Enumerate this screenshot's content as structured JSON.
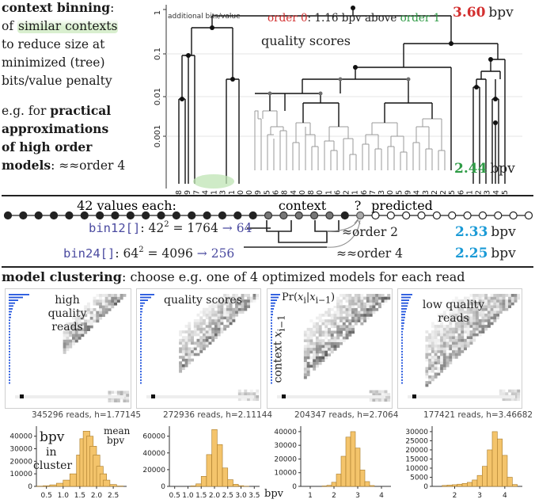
{
  "colors": {
    "red": "#d32f2f",
    "green": "#2e9b45",
    "blue": "#1a9ad6",
    "purple": "#4b4ba0",
    "orange": "#f4c46b",
    "orange_edge": "#a77a2a"
  },
  "left_text": {
    "line1_bold": "context binning",
    "line1_rest": ":",
    "line2_pre": "of ",
    "line2_hl": "similar contexts",
    "line3": "to reduce size at",
    "line4": "minimized (tree)",
    "line5": "bits/value penalty",
    "line6": "e.g. for ",
    "line6_bold": "practical",
    "line7_bold": "approximations",
    "line8_bold": "of high order",
    "line9_bold": "models",
    "line9_rest": ": ≈≈order 4"
  },
  "tree": {
    "y_tick_labels": [
      "1",
      "0.1",
      "0.01",
      "0.001"
    ],
    "axis_caption": "additional bits/value",
    "order_note_a": "order 0",
    "order_note_b": ": 1.16 bpv above ",
    "order_note_c": "order 1",
    "bpv_top_value": "3.60",
    "bpv_bottom_value": "2.44",
    "bpv_unit": "bpv",
    "title": "quality scores",
    "leaf_labels": [
      "38",
      "39",
      "37",
      "4",
      "41",
      "3",
      "1",
      "0",
      "40",
      "19",
      "25",
      "26",
      "28",
      "24",
      "30",
      "18",
      "20",
      "21",
      "6",
      "12",
      "11",
      "16",
      "17",
      "23",
      "10",
      "15",
      "9",
      "14",
      "13",
      "22",
      "2",
      "35",
      "36",
      "31",
      "32",
      "33",
      "34",
      "5"
    ]
  },
  "context_row": {
    "values_label": "42 values each:",
    "context_label": "context",
    "question": "?",
    "predicted_label": "predicted",
    "bin12_name": "bin12[]",
    "bin12_formula": ": 42",
    "bin12_exp": "2",
    "bin12_eq": " = 1764 ",
    "bin12_arrow": "→ 64",
    "bin24_name": "bin24[]",
    "bin24_formula": ": 64",
    "bin24_exp": "2",
    "bin24_eq": " = 4096 ",
    "bin24_arrow": "→ 256",
    "order2_label": "≈order 2",
    "order2_value": "2.33",
    "order4_label": "≈≈order 4",
    "order4_value": "2.25",
    "unit": "bpv"
  },
  "clustering": {
    "heading_bold": "model clustering",
    "heading_rest": ": choose e.g. one of 4 optimized models for each read",
    "panel1_label": "high quality reads",
    "panel2_label": "quality scores",
    "panel3_label": "Pr(x_i|x_{i-1})",
    "panel3_side": "context x_{i-1}",
    "panel4_label": "low quality reads",
    "stats": [
      "345296 reads, h=1.77145",
      "272936 reads, h=2.11144",
      "204347 reads, h=2.7064",
      "177421 reads, h=3.46682"
    ],
    "hist_note_bpv": "bpv",
    "hist_note_in": "in",
    "hist_note_cluster": "cluster",
    "hist_note_mean": "mean",
    "hist_note_mean_bpv": "bpv",
    "x_axis_unit": "bpv"
  },
  "chart_data": [
    {
      "type": "bar",
      "title": "345296 reads, h=1.77145",
      "x": [
        0.3,
        0.5,
        0.7,
        0.9,
        1.1,
        1.3,
        1.5,
        1.6,
        1.7,
        1.8,
        1.9,
        2.0,
        2.1,
        2.2,
        2.3,
        2.5,
        2.7
      ],
      "values": [
        200,
        500,
        1200,
        2500,
        5000,
        10000,
        25000,
        38000,
        44000,
        40000,
        32000,
        25000,
        16000,
        10000,
        5000,
        1500,
        300
      ],
      "xticks": [
        "0.5",
        "1.0",
        "1.5",
        "2.0",
        "2.5"
      ],
      "yticks": [
        "0",
        "10000",
        "20000",
        "30000",
        "40000"
      ],
      "ylim": [
        0,
        48000
      ],
      "xlim": [
        0.2,
        2.9
      ]
    },
    {
      "type": "bar",
      "title": "272936 reads, h=2.11144",
      "x": [
        1.2,
        1.4,
        1.6,
        1.8,
        2.0,
        2.2,
        2.4,
        2.6,
        2.8,
        3.0,
        3.2
      ],
      "values": [
        600,
        3000,
        12000,
        38000,
        68000,
        50000,
        22000,
        8000,
        2500,
        800,
        200
      ],
      "xticks": [
        "0.5",
        "1.0",
        "1.5",
        "2.0",
        "2.5",
        "3.0",
        "3.5"
      ],
      "yticks": [
        "0",
        "20000",
        "40000",
        "60000"
      ],
      "ylim": [
        0,
        72000
      ],
      "xlim": [
        0.3,
        3.7
      ]
    },
    {
      "type": "bar",
      "title": "204347 reads, h=2.7064",
      "x": [
        1.6,
        1.8,
        2.0,
        2.2,
        2.4,
        2.6,
        2.8,
        3.0,
        3.2,
        3.4,
        3.6
      ],
      "values": [
        300,
        800,
        3000,
        9000,
        22000,
        36000,
        40000,
        28000,
        12000,
        3500,
        600
      ],
      "xticks": [
        "1",
        "2",
        "3",
        "4"
      ],
      "yticks": [
        "0",
        "10000",
        "20000",
        "30000",
        "40000"
      ],
      "ylim": [
        0,
        44000
      ],
      "xlim": [
        0.6,
        4.4
      ]
    },
    {
      "type": "bar",
      "title": "177421 reads, h=3.46682",
      "x": [
        1.6,
        1.8,
        2.0,
        2.2,
        2.4,
        2.6,
        2.8,
        3.0,
        3.2,
        3.4,
        3.6,
        3.8,
        4.0,
        4.2,
        4.4
      ],
      "values": [
        500,
        700,
        900,
        1200,
        1600,
        2200,
        3500,
        6000,
        11000,
        20000,
        30000,
        26000,
        17000,
        5000,
        1000
      ],
      "xticks": [
        "2",
        "3",
        "4"
      ],
      "yticks": [
        "0",
        "5000",
        "10000",
        "15000",
        "20000",
        "25000",
        "30000"
      ],
      "ylim": [
        0,
        33000
      ],
      "xlim": [
        1.1,
        4.7
      ]
    }
  ]
}
